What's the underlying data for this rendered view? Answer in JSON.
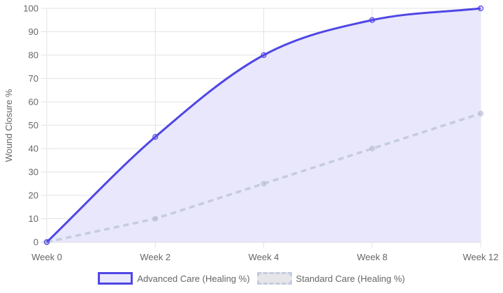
{
  "chart_data": {
    "type": "line",
    "title": "",
    "xlabel": "",
    "ylabel": "Wound Closure %",
    "categories": [
      "Week 0",
      "Week 2",
      "Week 4",
      "Week 8",
      "Week 12"
    ],
    "ylim": [
      0,
      100
    ],
    "yticks": [
      0,
      10,
      20,
      30,
      40,
      50,
      60,
      70,
      80,
      90,
      100
    ],
    "grid": true,
    "legend_position": "bottom",
    "series": [
      {
        "name": "Advanced Care (Healing %)",
        "values": [
          0,
          45,
          80,
          95,
          100
        ],
        "color": "#4f46e5",
        "fill": "#e8e7fb",
        "style": "solid",
        "filled": true
      },
      {
        "name": "Standard Care (Healing %)",
        "values": [
          0,
          10,
          25,
          40,
          55
        ],
        "color": "#c5cbe0",
        "style": "dashed",
        "filled": false
      }
    ]
  },
  "legend": {
    "advanced_label": "Advanced Care (Healing %)",
    "standard_label": "Standard Care (Healing %)"
  },
  "axis": {
    "y_title": "Wound Closure %"
  }
}
